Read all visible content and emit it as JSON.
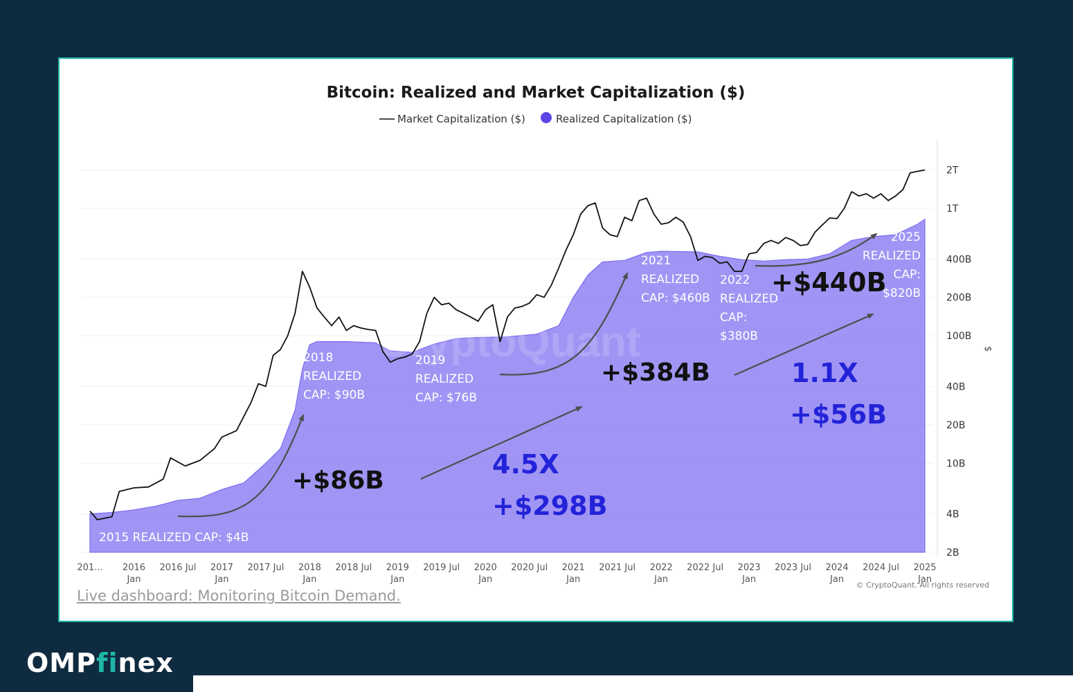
{
  "brand": {
    "left": "OMP",
    "mid": "fi",
    "right": "nex"
  },
  "footer": {
    "link_text": "Live dashboard: Monitoring Bitcoin Demand.",
    "copyright": "© CryptoQuant. All rights reserved"
  },
  "chart_data": {
    "type": "area",
    "title": "Bitcoin: Realized and Market Capitalization ($)",
    "ylabel": "$",
    "y_scale": "log",
    "ylim_usd_billions": [
      2,
      2400
    ],
    "legend_placement": "top-center",
    "legend": [
      {
        "name": "Market Capitalization ($)",
        "style": "line",
        "color": "#111111"
      },
      {
        "name": "Realized Capitalization ($)",
        "style": "area",
        "color": "#7b6cf0"
      }
    ],
    "y_ticks": [
      {
        "label": "2T",
        "value": 2000
      },
      {
        "label": "1T",
        "value": 1000
      },
      {
        "label": "400B",
        "value": 400
      },
      {
        "label": "200B",
        "value": 200
      },
      {
        "label": "100B",
        "value": 100
      },
      {
        "label": "40B",
        "value": 40
      },
      {
        "label": "20B",
        "value": 20
      },
      {
        "label": "10B",
        "value": 10
      },
      {
        "label": "4B",
        "value": 4
      },
      {
        "label": "2B",
        "value": 2
      }
    ],
    "x_ticks": [
      {
        "l1": "201...",
        "l2": "",
        "date": "2015-07"
      },
      {
        "l1": "2016",
        "l2": "Jan",
        "date": "2016-01"
      },
      {
        "l1": "2016 Jul",
        "l2": "",
        "date": "2016-07"
      },
      {
        "l1": "2017",
        "l2": "Jan",
        "date": "2017-01"
      },
      {
        "l1": "2017 Jul",
        "l2": "",
        "date": "2017-07"
      },
      {
        "l1": "2018",
        "l2": "Jan",
        "date": "2018-01"
      },
      {
        "l1": "2018 Jul",
        "l2": "",
        "date": "2018-07"
      },
      {
        "l1": "2019",
        "l2": "Jan",
        "date": "2019-01"
      },
      {
        "l1": "2019 Jul",
        "l2": "",
        "date": "2019-07"
      },
      {
        "l1": "2020",
        "l2": "Jan",
        "date": "2020-01"
      },
      {
        "l1": "2020 Jul",
        "l2": "",
        "date": "2020-07"
      },
      {
        "l1": "2021",
        "l2": "Jan",
        "date": "2021-01"
      },
      {
        "l1": "2021 Jul",
        "l2": "",
        "date": "2021-07"
      },
      {
        "l1": "2022",
        "l2": "Jan",
        "date": "2022-01"
      },
      {
        "l1": "2022 Jul",
        "l2": "",
        "date": "2022-07"
      },
      {
        "l1": "2023",
        "l2": "Jan",
        "date": "2023-01"
      },
      {
        "l1": "2023 Jul",
        "l2": "",
        "date": "2023-07"
      },
      {
        "l1": "2024",
        "l2": "Jan",
        "date": "2024-01"
      },
      {
        "l1": "2024 Jul",
        "l2": "",
        "date": "2024-07"
      },
      {
        "l1": "2025",
        "l2": "Jan",
        "date": "2025-01"
      }
    ],
    "series": [
      {
        "name": "Realized Capitalization ($)",
        "unit": "USD billions",
        "points": [
          [
            "2015-07",
            4.0
          ],
          [
            "2015-10",
            4.1
          ],
          [
            "2016-01",
            4.3
          ],
          [
            "2016-04",
            4.6
          ],
          [
            "2016-07",
            5.1
          ],
          [
            "2016-10",
            5.3
          ],
          [
            "2017-01",
            6.2
          ],
          [
            "2017-04",
            7.0
          ],
          [
            "2017-07",
            10.0
          ],
          [
            "2017-09",
            13.0
          ],
          [
            "2017-11",
            26.0
          ],
          [
            "2017-12",
            55.0
          ],
          [
            "2018-01",
            85.0
          ],
          [
            "2018-02",
            90.0
          ],
          [
            "2018-06",
            90.0
          ],
          [
            "2018-10",
            88.0
          ],
          [
            "2018-12",
            76.0
          ],
          [
            "2019-03",
            74.0
          ],
          [
            "2019-06",
            86.0
          ],
          [
            "2019-09",
            95.0
          ],
          [
            "2019-12",
            97.0
          ],
          [
            "2020-04",
            98.0
          ],
          [
            "2020-08",
            103.0
          ],
          [
            "2020-11",
            120.0
          ],
          [
            "2021-01",
            200.0
          ],
          [
            "2021-03",
            300.0
          ],
          [
            "2021-05",
            380.0
          ],
          [
            "2021-08",
            390.0
          ],
          [
            "2021-11",
            450.0
          ],
          [
            "2022-01",
            460.0
          ],
          [
            "2022-06",
            455.0
          ],
          [
            "2022-09",
            420.0
          ],
          [
            "2022-12",
            395.0
          ],
          [
            "2023-03",
            385.0
          ],
          [
            "2023-06",
            395.0
          ],
          [
            "2023-09",
            400.0
          ],
          [
            "2023-12",
            440.0
          ],
          [
            "2024-03",
            560.0
          ],
          [
            "2024-06",
            600.0
          ],
          [
            "2024-09",
            620.0
          ],
          [
            "2024-12",
            750.0
          ],
          [
            "2025-01",
            820.0
          ]
        ]
      },
      {
        "name": "Market Capitalization ($)",
        "unit": "USD billions",
        "points": [
          [
            "2015-07",
            4.2
          ],
          [
            "2015-08",
            3.6
          ],
          [
            "2015-10",
            3.8
          ],
          [
            "2015-11",
            6.0
          ],
          [
            "2016-01",
            6.4
          ],
          [
            "2016-03",
            6.5
          ],
          [
            "2016-05",
            7.5
          ],
          [
            "2016-06",
            11.0
          ],
          [
            "2016-08",
            9.5
          ],
          [
            "2016-10",
            10.5
          ],
          [
            "2016-12",
            13.0
          ],
          [
            "2017-01",
            16.0
          ],
          [
            "2017-03",
            18.0
          ],
          [
            "2017-05",
            30.0
          ],
          [
            "2017-06",
            42.0
          ],
          [
            "2017-07",
            40.0
          ],
          [
            "2017-08",
            70.0
          ],
          [
            "2017-09",
            78.0
          ],
          [
            "2017-10",
            100.0
          ],
          [
            "2017-11",
            150.0
          ],
          [
            "2017-12",
            320.0
          ],
          [
            "2018-01",
            240.0
          ],
          [
            "2018-02",
            165.0
          ],
          [
            "2018-03",
            140.0
          ],
          [
            "2018-04",
            120.0
          ],
          [
            "2018-05",
            140.0
          ],
          [
            "2018-06",
            110.0
          ],
          [
            "2018-07",
            120.0
          ],
          [
            "2018-08",
            115.0
          ],
          [
            "2018-09",
            112.0
          ],
          [
            "2018-10",
            110.0
          ],
          [
            "2018-11",
            75.0
          ],
          [
            "2018-12",
            62.0
          ],
          [
            "2019-01",
            66.0
          ],
          [
            "2019-02",
            68.0
          ],
          [
            "2019-03",
            72.0
          ],
          [
            "2019-04",
            90.0
          ],
          [
            "2019-05",
            150.0
          ],
          [
            "2019-06",
            200.0
          ],
          [
            "2019-07",
            175.0
          ],
          [
            "2019-08",
            180.0
          ],
          [
            "2019-09",
            160.0
          ],
          [
            "2019-10",
            150.0
          ],
          [
            "2019-11",
            140.0
          ],
          [
            "2019-12",
            130.0
          ],
          [
            "2020-01",
            160.0
          ],
          [
            "2020-02",
            175.0
          ],
          [
            "2020-03",
            90.0
          ],
          [
            "2020-04",
            140.0
          ],
          [
            "2020-05",
            165.0
          ],
          [
            "2020-06",
            170.0
          ],
          [
            "2020-07",
            180.0
          ],
          [
            "2020-08",
            210.0
          ],
          [
            "2020-09",
            200.0
          ],
          [
            "2020-10",
            250.0
          ],
          [
            "2020-11",
            340.0
          ],
          [
            "2020-12",
            470.0
          ],
          [
            "2021-01",
            620.0
          ],
          [
            "2021-02",
            900.0
          ],
          [
            "2021-03",
            1050.0
          ],
          [
            "2021-04",
            1100.0
          ],
          [
            "2021-05",
            700.0
          ],
          [
            "2021-06",
            620.0
          ],
          [
            "2021-07",
            600.0
          ],
          [
            "2021-08",
            850.0
          ],
          [
            "2021-09",
            800.0
          ],
          [
            "2021-10",
            1150.0
          ],
          [
            "2021-11",
            1200.0
          ],
          [
            "2021-12",
            900.0
          ],
          [
            "2022-01",
            750.0
          ],
          [
            "2022-02",
            770.0
          ],
          [
            "2022-03",
            850.0
          ],
          [
            "2022-04",
            780.0
          ],
          [
            "2022-05",
            600.0
          ],
          [
            "2022-06",
            390.0
          ],
          [
            "2022-07",
            420.0
          ],
          [
            "2022-08",
            410.0
          ],
          [
            "2022-09",
            370.0
          ],
          [
            "2022-10",
            380.0
          ],
          [
            "2022-11",
            320.0
          ],
          [
            "2022-12",
            320.0
          ],
          [
            "2023-01",
            440.0
          ],
          [
            "2023-02",
            450.0
          ],
          [
            "2023-03",
            530.0
          ],
          [
            "2023-04",
            560.0
          ],
          [
            "2023-05",
            530.0
          ],
          [
            "2023-06",
            590.0
          ],
          [
            "2023-07",
            560.0
          ],
          [
            "2023-08",
            510.0
          ],
          [
            "2023-09",
            520.0
          ],
          [
            "2023-10",
            650.0
          ],
          [
            "2023-11",
            740.0
          ],
          [
            "2023-12",
            840.0
          ],
          [
            "2024-01",
            830.0
          ],
          [
            "2024-02",
            1000.0
          ],
          [
            "2024-03",
            1350.0
          ],
          [
            "2024-04",
            1250.0
          ],
          [
            "2024-05",
            1300.0
          ],
          [
            "2024-06",
            1200.0
          ],
          [
            "2024-07",
            1300.0
          ],
          [
            "2024-08",
            1150.0
          ],
          [
            "2024-09",
            1250.0
          ],
          [
            "2024-10",
            1400.0
          ],
          [
            "2024-11",
            1900.0
          ],
          [
            "2024-12",
            1950.0
          ],
          [
            "2025-01",
            2000.0
          ]
        ]
      }
    ],
    "annotations": [
      {
        "id": "rc2015",
        "lines": [
          "2015 REALIZED CAP: $4B"
        ]
      },
      {
        "id": "rc2018",
        "lines": [
          "2018",
          "REALIZED",
          "CAP: $90B"
        ]
      },
      {
        "id": "rc2019",
        "lines": [
          "2019",
          "REALIZED",
          "CAP: $76B"
        ]
      },
      {
        "id": "rc2021",
        "lines": [
          "2021",
          "REALIZED",
          "CAP: $460B"
        ]
      },
      {
        "id": "rc2022",
        "lines": [
          "2022",
          "REALIZED",
          "CAP:",
          "$380B"
        ]
      },
      {
        "id": "rc2025",
        "lines": [
          "2025",
          "REALIZED",
          "CAP:",
          "$820B"
        ]
      },
      {
        "id": "g86",
        "lines": [
          "+$86B"
        ]
      },
      {
        "id": "g384",
        "lines": [
          "+$384B"
        ]
      },
      {
        "id": "g440",
        "lines": [
          "+$440B"
        ]
      },
      {
        "id": "m45",
        "lines": [
          "4.5X"
        ]
      },
      {
        "id": "g298",
        "lines": [
          "+$298B"
        ]
      },
      {
        "id": "m11",
        "lines": [
          "1.1X"
        ]
      },
      {
        "id": "g56",
        "lines": [
          "+$56B"
        ]
      }
    ],
    "watermark": "CryptoQuant",
    "colors": {
      "area": "#7b6cf0",
      "line": "#111111",
      "multiplier_text": "#2323d9",
      "gain_text": "#111111"
    }
  }
}
